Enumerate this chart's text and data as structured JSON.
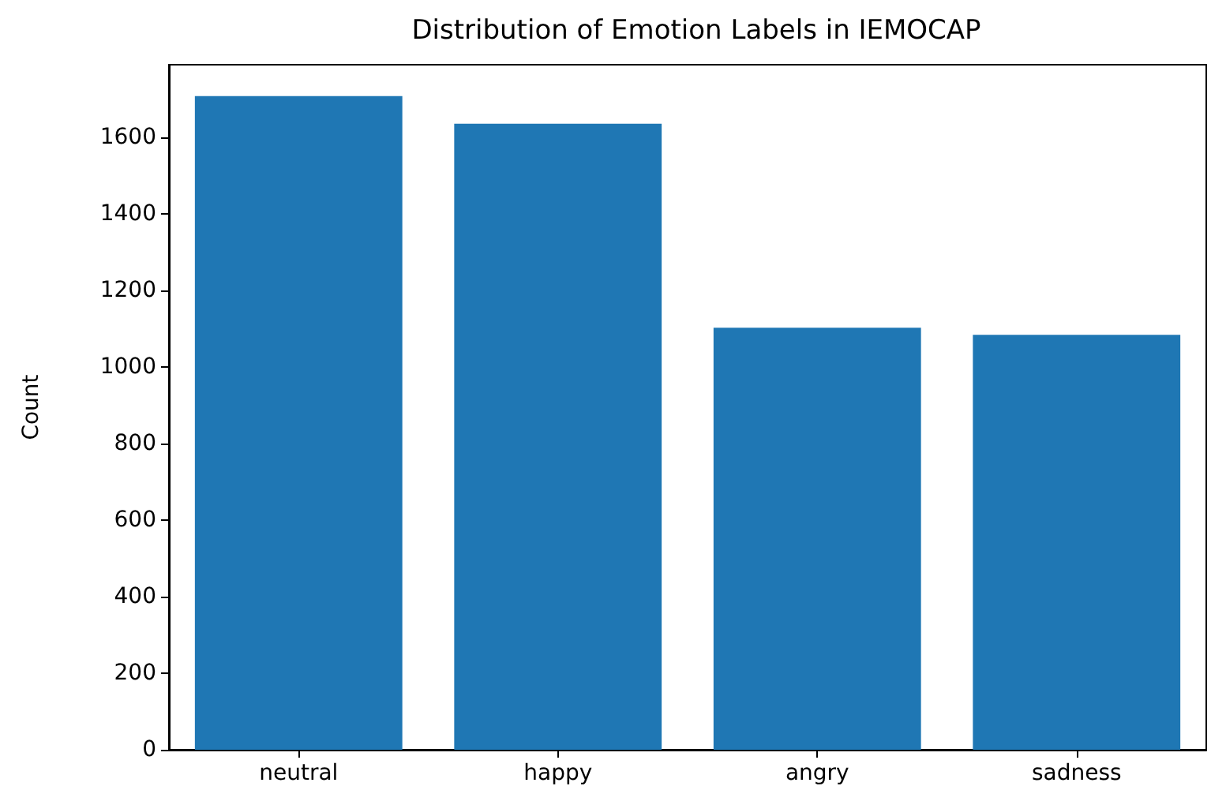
{
  "chart_data": {
    "type": "bar",
    "title": "Distribution of Emotion Labels in IEMOCAP",
    "ylabel": "Count",
    "categories": [
      "neutral",
      "happy",
      "angry",
      "sadness"
    ],
    "values": [
      1708,
      1636,
      1103,
      1084
    ],
    "color": "#1f77b4",
    "ylim": [
      0,
      1790
    ],
    "yticks": [
      0,
      200,
      400,
      600,
      800,
      1000,
      1200,
      1400,
      1600
    ],
    "grid": false
  }
}
